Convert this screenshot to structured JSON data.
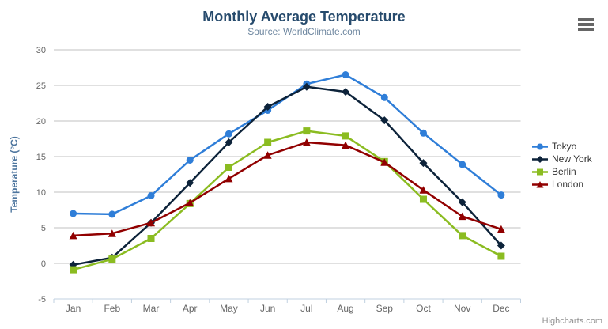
{
  "header": {
    "title": "Monthly Average Temperature",
    "subtitle": "Source: WorldClimate.com"
  },
  "export_menu": {
    "icon": "hamburger-icon"
  },
  "credits": {
    "label": "Highcharts.com"
  },
  "theme": {
    "title_color": "#274b6d",
    "subtitle_color": "#6d869f",
    "axis_label_color": "#666666",
    "axis_title_color": "#4d759e",
    "gridline_color": "#c0c0c0",
    "axis_line_color": "#c0d0e0",
    "legend_text_color": "#333333",
    "credits_color": "#909090",
    "export_icon_color": "#666666",
    "background_color": "#ffffff"
  },
  "chart_data": {
    "type": "line",
    "title": "Monthly Average Temperature",
    "subtitle": "Source: WorldClimate.com",
    "xlabel": "",
    "ylabel": "Temperature (°C)",
    "categories": [
      "Jan",
      "Feb",
      "Mar",
      "Apr",
      "May",
      "Jun",
      "Jul",
      "Aug",
      "Sep",
      "Oct",
      "Nov",
      "Dec"
    ],
    "series": [
      {
        "name": "Tokyo",
        "marker": "circle",
        "color": "#2f7ed8",
        "values": [
          7.0,
          6.9,
          9.5,
          14.5,
          18.2,
          21.5,
          25.2,
          26.5,
          23.3,
          18.3,
          13.9,
          9.6
        ]
      },
      {
        "name": "New York",
        "marker": "diamond",
        "color": "#0d233a",
        "values": [
          -0.2,
          0.8,
          5.7,
          11.3,
          17.0,
          22.0,
          24.8,
          24.1,
          20.1,
          14.1,
          8.6,
          2.5
        ]
      },
      {
        "name": "Berlin",
        "marker": "square",
        "color": "#8bbc21",
        "values": [
          -0.9,
          0.6,
          3.5,
          8.4,
          13.5,
          17.0,
          18.6,
          17.9,
          14.3,
          9.0,
          3.9,
          1.0
        ]
      },
      {
        "name": "London",
        "marker": "triangle-up",
        "color": "#910000",
        "values": [
          3.9,
          4.2,
          5.7,
          8.5,
          11.9,
          15.2,
          17.0,
          16.6,
          14.2,
          10.3,
          6.6,
          4.8
        ]
      }
    ],
    "ylim": [
      -5,
      30
    ],
    "yticks": [
      -5,
      0,
      5,
      10,
      15,
      20,
      25,
      30
    ],
    "grid": true,
    "legend_position": "right"
  }
}
